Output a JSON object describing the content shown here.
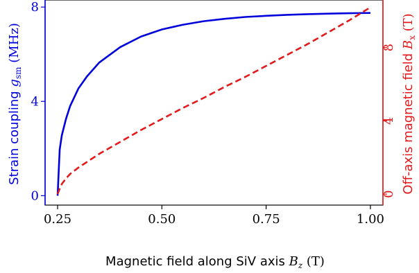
{
  "colors": {
    "left_axis": "#0000dd",
    "right_axis": "#e31a1c",
    "axis": "#000000"
  },
  "chart_data": {
    "type": "line",
    "xlabel": {
      "prefix": "Magnetic field along SiV axis ",
      "var": "B",
      "sub": "z",
      "unit": " (T)"
    },
    "ylabel_left": {
      "prefix": "Strain coupling ",
      "var": "g",
      "sub": "sm",
      "unit": " (MHz)"
    },
    "ylabel_right": {
      "prefix": "Off-axis magnetic field ",
      "var": "B",
      "sub": "x",
      "unit": " (T)"
    },
    "x_ticks": [
      "0.25",
      "0.50",
      "0.75",
      "1.00"
    ],
    "x_tick_values": [
      0.25,
      0.5,
      0.75,
      1.0
    ],
    "xlim": [
      0.22,
      1.03
    ],
    "y_left_ticks": [
      "0",
      "4",
      "8"
    ],
    "y_left_tick_values": [
      0,
      4,
      8
    ],
    "ylim_left": [
      -0.4,
      8.3
    ],
    "y_right_ticks": [
      "0",
      "4",
      "8"
    ],
    "y_right_tick_values": [
      0,
      4,
      8
    ],
    "ylim_right": [
      -0.6,
      10.6
    ],
    "series": [
      {
        "axis": "left",
        "style": "solid",
        "x": [
          0.25,
          0.255,
          0.26,
          0.27,
          0.28,
          0.3,
          0.32,
          0.35,
          0.4,
          0.45,
          0.5,
          0.55,
          0.6,
          0.65,
          0.7,
          0.75,
          0.8,
          0.85,
          0.9,
          0.95,
          1.0
        ],
        "y": [
          0.0,
          1.95,
          2.55,
          3.25,
          3.8,
          4.55,
          5.05,
          5.65,
          6.3,
          6.75,
          7.05,
          7.25,
          7.4,
          7.5,
          7.58,
          7.63,
          7.67,
          7.7,
          7.72,
          7.74,
          7.75
        ]
      },
      {
        "axis": "right",
        "style": "dashed",
        "x": [
          0.25,
          0.255,
          0.26,
          0.27,
          0.28,
          0.3,
          0.35,
          0.4,
          0.45,
          0.5,
          0.55,
          0.6,
          0.65,
          0.7,
          0.75,
          0.8,
          0.85,
          0.9,
          0.95,
          1.0
        ],
        "y": [
          0.0,
          0.3,
          0.55,
          0.85,
          1.1,
          1.45,
          2.2,
          2.85,
          3.5,
          4.1,
          4.7,
          5.25,
          5.85,
          6.4,
          7.0,
          7.6,
          8.2,
          8.85,
          9.5,
          10.2
        ]
      }
    ]
  }
}
